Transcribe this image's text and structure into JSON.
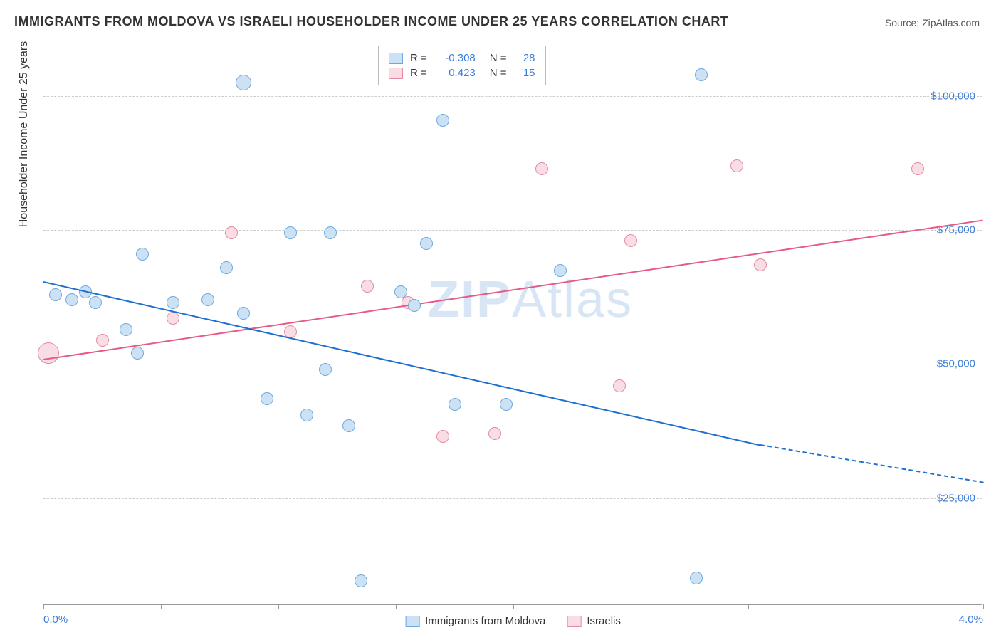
{
  "title": "IMMIGRANTS FROM MOLDOVA VS ISRAELI HOUSEHOLDER INCOME UNDER 25 YEARS CORRELATION CHART",
  "source": "Source: ZipAtlas.com",
  "ylabel": "Householder Income Under 25 years",
  "watermark_bold": "ZIP",
  "watermark_light": "Atlas",
  "chart": {
    "type": "scatter",
    "background_color": "#ffffff",
    "grid_color": "#cccccc",
    "axis_color": "#999999",
    "tick_label_color": "#3b7dd8",
    "xlim": [
      0.0,
      4.0
    ],
    "ylim": [
      5000,
      110000
    ],
    "y_gridlines": [
      25000,
      50000,
      75000,
      100000
    ],
    "ytick_labels": {
      "25000": "$25,000",
      "50000": "$50,000",
      "75000": "$75,000",
      "100000": "$100,000"
    },
    "xtick_positions": [
      0.0,
      0.5,
      1.0,
      1.5,
      2.0,
      2.5,
      3.0,
      3.5,
      4.0
    ],
    "xtick_labels": {
      "0": "0.0%",
      "4": "4.0%"
    },
    "marker_radius": 9,
    "marker_stroke_width": 1.5,
    "series": {
      "moldova": {
        "label": "Immigrants from Moldova",
        "fill": "#cde1f5",
        "stroke": "#6fa9e0",
        "line_color": "#1f6fd1",
        "r_value": "-0.308",
        "n_value": "28",
        "trend": {
          "x1": 0.0,
          "y1": 65500,
          "x2": 3.05,
          "y2": 35000,
          "x2_ext": 4.0,
          "y2_ext": 28000
        },
        "points": [
          {
            "x": 0.05,
            "y": 63000
          },
          {
            "x": 0.12,
            "y": 62000
          },
          {
            "x": 0.18,
            "y": 63500
          },
          {
            "x": 0.22,
            "y": 61500
          },
          {
            "x": 0.35,
            "y": 56500
          },
          {
            "x": 0.42,
            "y": 70500
          },
          {
            "x": 0.4,
            "y": 52000
          },
          {
            "x": 0.55,
            "y": 61500
          },
          {
            "x": 0.7,
            "y": 62000
          },
          {
            "x": 0.78,
            "y": 68000
          },
          {
            "x": 0.85,
            "y": 102500,
            "r": 11
          },
          {
            "x": 0.85,
            "y": 59500
          },
          {
            "x": 0.95,
            "y": 43500
          },
          {
            "x": 1.05,
            "y": 74500
          },
          {
            "x": 1.12,
            "y": 40500
          },
          {
            "x": 1.22,
            "y": 74500
          },
          {
            "x": 1.2,
            "y": 49000
          },
          {
            "x": 1.3,
            "y": 38500
          },
          {
            "x": 1.35,
            "y": 9500
          },
          {
            "x": 1.52,
            "y": 63500
          },
          {
            "x": 1.58,
            "y": 61000
          },
          {
            "x": 1.63,
            "y": 72500
          },
          {
            "x": 1.7,
            "y": 95500
          },
          {
            "x": 1.75,
            "y": 42500
          },
          {
            "x": 1.97,
            "y": 42500
          },
          {
            "x": 2.2,
            "y": 67500
          },
          {
            "x": 2.78,
            "y": 10000
          },
          {
            "x": 2.8,
            "y": 104000
          }
        ]
      },
      "israelis": {
        "label": "Israelis",
        "fill": "#f9dde4",
        "stroke": "#e48ba2",
        "line_color": "#e65a87",
        "r_value": "0.423",
        "n_value": "15",
        "trend": {
          "x1": 0.0,
          "y1": 51000,
          "x2": 4.0,
          "y2": 77000
        },
        "points": [
          {
            "x": 0.02,
            "y": 52000,
            "r": 15
          },
          {
            "x": 0.25,
            "y": 54500
          },
          {
            "x": 0.55,
            "y": 58500
          },
          {
            "x": 0.8,
            "y": 74500
          },
          {
            "x": 1.05,
            "y": 56000
          },
          {
            "x": 1.38,
            "y": 64500
          },
          {
            "x": 1.55,
            "y": 61500
          },
          {
            "x": 1.7,
            "y": 36500
          },
          {
            "x": 1.92,
            "y": 37000
          },
          {
            "x": 2.12,
            "y": 86500
          },
          {
            "x": 2.45,
            "y": 46000
          },
          {
            "x": 2.5,
            "y": 73000
          },
          {
            "x": 2.95,
            "y": 87000
          },
          {
            "x": 3.05,
            "y": 68500
          },
          {
            "x": 3.72,
            "y": 86500
          }
        ]
      }
    }
  },
  "legend_top": {
    "r_label": "R =",
    "n_label": "N ="
  }
}
